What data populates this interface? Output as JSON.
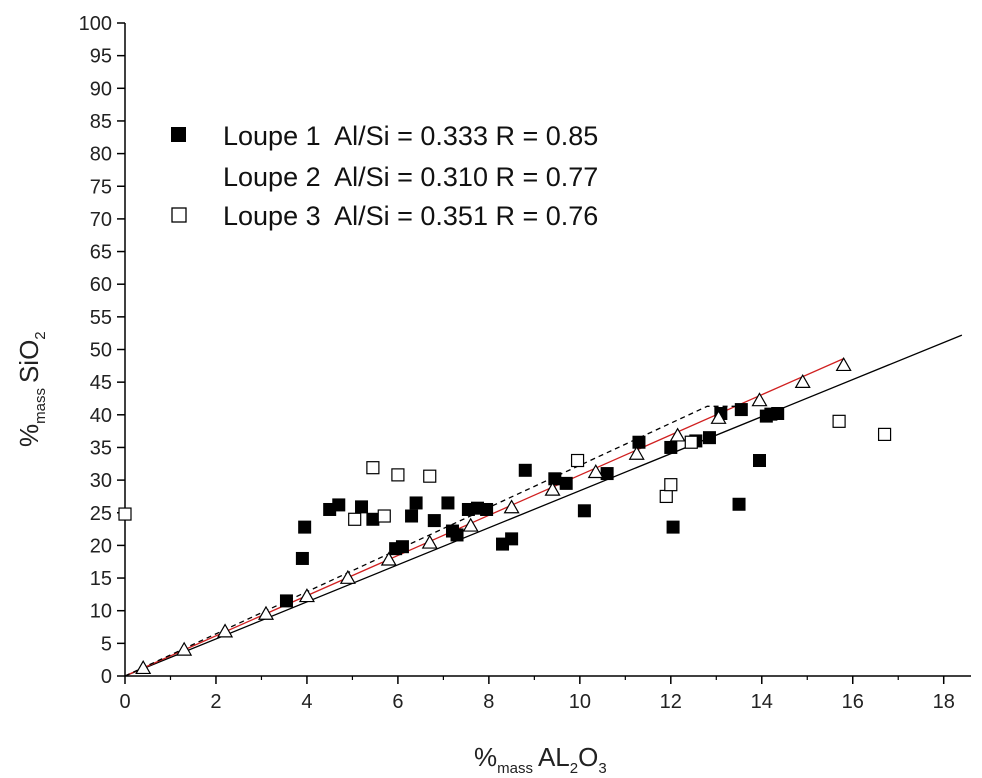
{
  "chart_data": {
    "type": "scatter",
    "title": "",
    "xlabel": {
      "prefix": "%",
      "sub": "mass",
      "main": "AL",
      "sub2": "2",
      "main2": "O",
      "sub3": "3"
    },
    "ylabel": {
      "prefix": "%",
      "sub": "mass",
      "main": "SiO",
      "sub2": "2"
    },
    "xlim": [
      0,
      18.6
    ],
    "ylim": [
      0,
      100
    ],
    "x_ticks": [
      0,
      2,
      4,
      6,
      8,
      10,
      12,
      14,
      16,
      18
    ],
    "y_ticks": [
      0,
      5,
      10,
      15,
      20,
      25,
      30,
      35,
      40,
      45,
      50,
      55,
      60,
      65,
      70,
      75,
      80,
      85,
      90,
      95,
      100
    ],
    "grid": false,
    "legend_position": "top-left",
    "series": [
      {
        "name": "Loupe 1  Al/Si = 0.333 R = 0.85",
        "marker": "filled-square",
        "color": "#000000",
        "points": [
          [
            3.55,
            11.5
          ],
          [
            3.9,
            18
          ],
          [
            3.95,
            22.8
          ],
          [
            4.5,
            25.5
          ],
          [
            4.7,
            26.2
          ],
          [
            5.2,
            25.9
          ],
          [
            5.45,
            24
          ],
          [
            5.95,
            19.5
          ],
          [
            6.1,
            19.8
          ],
          [
            6.3,
            24.5
          ],
          [
            6.4,
            26.5
          ],
          [
            6.8,
            23.8
          ],
          [
            7.1,
            26.5
          ],
          [
            7.2,
            22.2
          ],
          [
            7.3,
            21.6
          ],
          [
            7.55,
            25.5
          ],
          [
            7.75,
            25.7
          ],
          [
            7.95,
            25.5
          ],
          [
            8.3,
            20.2
          ],
          [
            8.5,
            21
          ],
          [
            8.8,
            31.5
          ],
          [
            9.45,
            30.2
          ],
          [
            9.7,
            29.5
          ],
          [
            10.1,
            25.3
          ],
          [
            10.6,
            31
          ],
          [
            11.3,
            35.8
          ],
          [
            12,
            35
          ],
          [
            12.05,
            22.8
          ],
          [
            12.55,
            36
          ],
          [
            12.85,
            36.5
          ],
          [
            13.1,
            40.2
          ],
          [
            13.5,
            26.3
          ],
          [
            13.55,
            40.8
          ],
          [
            13.95,
            33
          ],
          [
            14.1,
            39.8
          ],
          [
            14.2,
            40.1
          ],
          [
            14.35,
            40.2
          ]
        ]
      },
      {
        "name": "Loupe 2  Al/Si = 0.310 R = 0.77",
        "marker": "open-triangle",
        "color": "#000000",
        "points": [
          [
            0.4,
            1.2
          ],
          [
            1.3,
            4
          ],
          [
            2.2,
            6.8
          ],
          [
            3.1,
            9.5
          ],
          [
            4,
            12.2
          ],
          [
            4.9,
            15
          ],
          [
            5.8,
            17.8
          ],
          [
            6.7,
            20.4
          ],
          [
            7.6,
            23
          ],
          [
            8.5,
            25.8
          ],
          [
            9.4,
            28.5
          ],
          [
            10.35,
            31.2
          ],
          [
            11.25,
            34
          ],
          [
            12.15,
            36.8
          ],
          [
            13.05,
            39.5
          ],
          [
            13.95,
            42.2
          ],
          [
            14.9,
            45
          ],
          [
            15.8,
            47.6
          ]
        ]
      },
      {
        "name": "Loupe 3  Al/Si = 0.351 R = 0.76",
        "marker": "open-square",
        "color": "#000000",
        "points": [
          [
            0,
            24.8
          ],
          [
            5.05,
            24
          ],
          [
            5.45,
            31.9
          ],
          [
            5.7,
            24.5
          ],
          [
            6,
            30.8
          ],
          [
            6.7,
            30.6
          ],
          [
            9.95,
            33
          ],
          [
            11.9,
            27.5
          ],
          [
            12,
            29.3
          ],
          [
            12.45,
            35.8
          ],
          [
            15.7,
            39
          ],
          [
            16.7,
            37
          ]
        ]
      }
    ],
    "fit_lines": [
      {
        "color": "#000000",
        "style": "solid",
        "points": [
          [
            0,
            0
          ],
          [
            18.4,
            52.2
          ]
        ]
      },
      {
        "color": "#d02020",
        "style": "solid",
        "points": [
          [
            0,
            0
          ],
          [
            15.8,
            48.6
          ]
        ]
      },
      {
        "color": "#000000",
        "style": "dashed",
        "points": [
          [
            0,
            0
          ],
          [
            12.8,
            41.3
          ],
          [
            13.6,
            41.3
          ]
        ]
      }
    ]
  }
}
